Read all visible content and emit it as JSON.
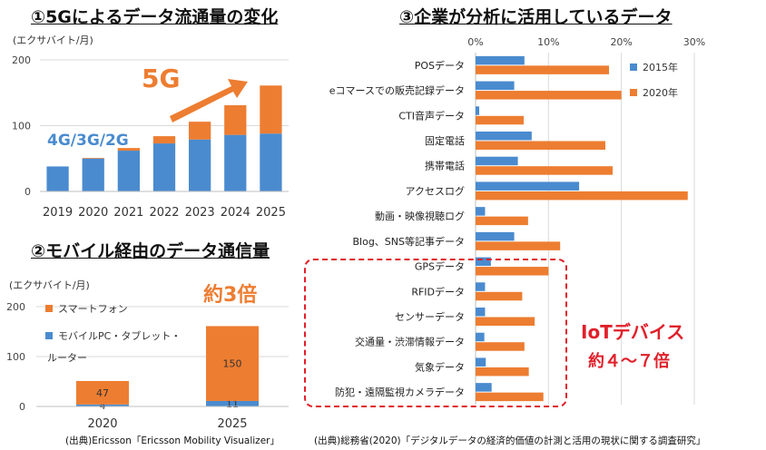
{
  "colors": {
    "blue": "#4a8bcf",
    "orange": "#ed7d31",
    "red": "#e0202a"
  },
  "panel1": {
    "title": "①5Gによるデータ流通量の変化",
    "unit": "(エクサバイト/月)",
    "label_4g": "4G/3G/2G",
    "label_5g": "5G"
  },
  "panel2": {
    "title": "②モバイル経由のデータ通信量",
    "unit": "(エクサバイト/月)",
    "callout": "約3倍",
    "legend_smartphone": "スマートフォン",
    "legend_other_line1": "モバイルPC・タブレット・",
    "legend_other_line2": "ルーター",
    "source": "(出典)Ericsson「Ericsson Mobility Visualizer」"
  },
  "panel3": {
    "title": "③企業が分析に活用しているデータ",
    "legend_2015": "2015年",
    "legend_2020": "2020年",
    "iot_label": "IoTデバイス",
    "iot_ratio": "約４～７倍",
    "source": "(出典)総務省(2020)「デジタルデータの経済的価値の計測と活用の現状に関する調査研究」"
  },
  "chart_data": [
    {
      "type": "bar",
      "stacked": true,
      "categories": [
        "2019",
        "2020",
        "2021",
        "2022",
        "2023",
        "2024",
        "2025"
      ],
      "series": [
        {
          "name": "4G/3G/2G",
          "values": [
            38,
            50,
            62,
            73,
            79,
            86,
            88
          ]
        },
        {
          "name": "5G",
          "values": [
            0,
            1,
            4,
            11,
            27,
            45,
            73
          ]
        }
      ],
      "yticks": [
        "0",
        "100",
        "200"
      ],
      "ylim": [
        0,
        200
      ]
    },
    {
      "type": "bar",
      "stacked": true,
      "categories": [
        "2020",
        "2025"
      ],
      "series": [
        {
          "name": "モバイルPC・タブレット・ルーター",
          "values": [
            4,
            11
          ]
        },
        {
          "name": "スマートフォン",
          "values": [
            47,
            150
          ]
        }
      ],
      "yticks": [
        "0",
        "100",
        "200"
      ],
      "ylim": [
        0,
        200
      ]
    },
    {
      "type": "bar",
      "orientation": "horizontal",
      "categories": [
        "POSデータ",
        "eコマースでの販売記録データ",
        "CTI音声データ",
        "固定電話",
        "携帯電話",
        "アクセスログ",
        "動画・映像視聴ログ",
        "Blog、SNS等記事データ",
        "GPSデータ",
        "RFIDデータ",
        "センサーデータ",
        "交通量・渋滞情報データ",
        "気象データ",
        "防犯・遠隔監視カメラデータ"
      ],
      "series": [
        {
          "name": "2015年",
          "values": [
            6.7,
            5.3,
            0.5,
            7.7,
            5.8,
            14.2,
            1.3,
            5.3,
            2.1,
            1.3,
            1.3,
            1.2,
            1.4,
            2.2
          ]
        },
        {
          "name": "2020年",
          "values": [
            18.3,
            20.0,
            6.6,
            17.8,
            18.8,
            29.1,
            7.2,
            11.6,
            10.0,
            6.4,
            8.1,
            6.7,
            7.3,
            9.3
          ]
        }
      ],
      "xticks": [
        "0%",
        "10%",
        "20%",
        "30%"
      ],
      "xlim": [
        0,
        30
      ]
    }
  ]
}
